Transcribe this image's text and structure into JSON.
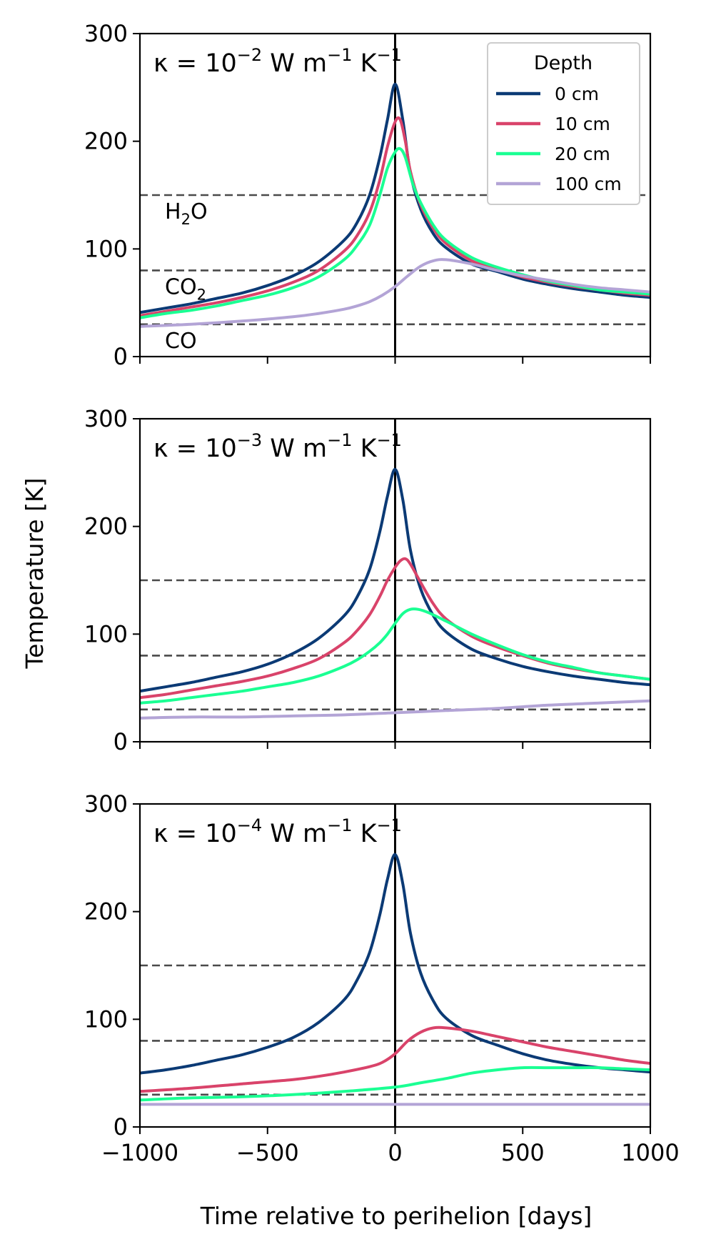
{
  "figure": {
    "xlabel": "Time relative to perihelion [days]",
    "ylabel": "Temperature [K]"
  },
  "legend": {
    "title": "Depth",
    "entries": [
      "0 cm",
      "10 cm",
      "20 cm",
      "100 cm"
    ],
    "placement": "top-right of first panel"
  },
  "ice_lines": [
    {
      "species": "H2O",
      "label_main": "H",
      "label_sub": "2",
      "label_tail": "O",
      "temperature": 150
    },
    {
      "species": "CO2",
      "label_main": "CO",
      "label_sub": "2",
      "label_tail": "",
      "temperature": 80
    },
    {
      "species": "CO",
      "label_main": "CO",
      "label_sub": "",
      "label_tail": "",
      "temperature": 30
    }
  ],
  "colors": {
    "0 cm": "#0b3a75",
    "10 cm": "#d9436a",
    "20 cm": "#1aff93",
    "100 cm": "#b3a4d6",
    "ice_line": "#4a4a4a"
  },
  "chart_data": [
    {
      "type": "line",
      "kappa_label": {
        "base": "κ = 10",
        "exp": "−2",
        "units": " W m",
        "u_exp1": "−1",
        "units2": " K",
        "u_exp2": "−1"
      },
      "xlim": [
        -1000,
        1000
      ],
      "ylim": [
        0,
        300
      ],
      "x_ticks": [
        -1000,
        -500,
        0,
        500,
        1000
      ],
      "y_ticks": [
        0,
        100,
        200,
        300
      ],
      "show_x_tick_labels": false,
      "series": [
        {
          "name": "0 cm",
          "x": [
            -1000,
            -900,
            -800,
            -700,
            -600,
            -500,
            -400,
            -300,
            -200,
            -150,
            -100,
            -60,
            -30,
            0,
            30,
            60,
            100,
            150,
            200,
            300,
            400,
            500,
            600,
            700,
            800,
            900,
            1000
          ],
          "y": [
            41,
            45,
            49,
            54,
            59,
            66,
            75,
            88,
            108,
            124,
            150,
            185,
            220,
            253,
            220,
            170,
            137,
            114,
            101,
            86,
            79,
            72,
            67,
            63,
            60,
            57,
            55
          ]
        },
        {
          "name": "10 cm",
          "x": [
            -1000,
            -900,
            -800,
            -700,
            -600,
            -500,
            -400,
            -300,
            -200,
            -150,
            -100,
            -60,
            -30,
            0,
            20,
            40,
            60,
            100,
            150,
            200,
            300,
            400,
            500,
            600,
            700,
            800,
            900,
            1000
          ],
          "y": [
            38,
            42,
            46,
            50,
            55,
            61,
            69,
            80,
            98,
            112,
            134,
            164,
            195,
            218,
            220,
            200,
            172,
            141,
            119,
            105,
            89,
            81,
            74,
            69,
            65,
            62,
            59,
            57
          ]
        },
        {
          "name": "20 cm",
          "x": [
            -1000,
            -900,
            -800,
            -700,
            -600,
            -500,
            -400,
            -300,
            -200,
            -150,
            -100,
            -60,
            -30,
            0,
            20,
            40,
            70,
            100,
            150,
            200,
            300,
            400,
            500,
            600,
            700,
            800,
            900,
            1000
          ],
          "y": [
            36,
            40,
            43,
            47,
            52,
            57,
            64,
            74,
            90,
            103,
            122,
            150,
            175,
            190,
            193,
            185,
            160,
            143,
            122,
            108,
            92,
            83,
            76,
            70,
            66,
            62,
            60,
            58
          ]
        },
        {
          "name": "100 cm",
          "x": [
            -1000,
            -800,
            -600,
            -400,
            -300,
            -200,
            -150,
            -100,
            -50,
            0,
            50,
            100,
            150,
            200,
            300,
            400,
            500,
            600,
            700,
            800,
            900,
            1000
          ],
          "y": [
            28,
            30,
            33,
            37,
            40,
            44,
            47,
            51,
            57,
            65,
            75,
            84,
            89,
            90,
            86,
            80,
            75,
            71,
            67,
            64,
            62,
            60
          ]
        }
      ]
    },
    {
      "type": "line",
      "kappa_label": {
        "base": "κ = 10",
        "exp": "−3",
        "units": " W m",
        "u_exp1": "−1",
        "units2": " K",
        "u_exp2": "−1"
      },
      "xlim": [
        -1000,
        1000
      ],
      "ylim": [
        0,
        300
      ],
      "x_ticks": [
        -1000,
        -500,
        0,
        500,
        1000
      ],
      "y_ticks": [
        0,
        100,
        200,
        300
      ],
      "show_x_tick_labels": false,
      "series": [
        {
          "name": "0 cm",
          "x": [
            -1000,
            -900,
            -800,
            -700,
            -600,
            -500,
            -400,
            -300,
            -200,
            -150,
            -100,
            -60,
            -30,
            0,
            30,
            60,
            100,
            150,
            200,
            300,
            400,
            500,
            600,
            700,
            800,
            900,
            1000
          ],
          "y": [
            47,
            51,
            55,
            60,
            65,
            72,
            82,
            96,
            117,
            134,
            160,
            195,
            228,
            253,
            225,
            178,
            142,
            117,
            102,
            86,
            77,
            70,
            65,
            61,
            58,
            55,
            53
          ]
        },
        {
          "name": "10 cm",
          "x": [
            -1000,
            -900,
            -800,
            -700,
            -600,
            -500,
            -400,
            -300,
            -200,
            -150,
            -100,
            -60,
            -30,
            0,
            20,
            40,
            60,
            100,
            150,
            200,
            300,
            400,
            500,
            600,
            700,
            800,
            900,
            1000
          ],
          "y": [
            41,
            44,
            48,
            52,
            56,
            61,
            68,
            77,
            92,
            103,
            118,
            135,
            150,
            162,
            168,
            170,
            165,
            148,
            128,
            114,
            98,
            88,
            80,
            73,
            68,
            64,
            61,
            58
          ]
        },
        {
          "name": "20 cm",
          "x": [
            -1000,
            -900,
            -800,
            -700,
            -600,
            -500,
            -400,
            -300,
            -200,
            -150,
            -100,
            -60,
            -30,
            0,
            30,
            60,
            90,
            130,
            200,
            300,
            400,
            500,
            600,
            700,
            800,
            900,
            1000
          ],
          "y": [
            36,
            38,
            41,
            44,
            47,
            51,
            55,
            61,
            70,
            76,
            84,
            92,
            100,
            110,
            119,
            123,
            123,
            120,
            112,
            100,
            90,
            81,
            74,
            69,
            64,
            61,
            58
          ]
        },
        {
          "name": "100 cm",
          "x": [
            -1000,
            -800,
            -600,
            -400,
            -200,
            0,
            200,
            400,
            600,
            800,
            1000
          ],
          "y": [
            22,
            23,
            23,
            24,
            25,
            27,
            29,
            31,
            34,
            36,
            38
          ]
        }
      ]
    },
    {
      "type": "line",
      "kappa_label": {
        "base": "κ = 10",
        "exp": "−4",
        "units": " W m",
        "u_exp1": "−1",
        "units2": " K",
        "u_exp2": "−1"
      },
      "xlim": [
        -1000,
        1000
      ],
      "ylim": [
        0,
        300
      ],
      "x_ticks": [
        -1000,
        -500,
        0,
        500,
        1000
      ],
      "y_ticks": [
        0,
        100,
        200,
        300
      ],
      "x_tick_labels": [
        "−1000",
        "−500",
        "0",
        "500",
        "1000"
      ],
      "show_x_tick_labels": true,
      "series": [
        {
          "name": "0 cm",
          "x": [
            -1000,
            -900,
            -800,
            -700,
            -600,
            -500,
            -400,
            -300,
            -200,
            -150,
            -100,
            -60,
            -30,
            0,
            30,
            60,
            100,
            150,
            200,
            300,
            400,
            500,
            600,
            700,
            800,
            900,
            1000
          ],
          "y": [
            50,
            53,
            57,
            62,
            67,
            74,
            83,
            97,
            118,
            136,
            162,
            197,
            230,
            253,
            226,
            180,
            143,
            117,
            101,
            85,
            76,
            68,
            62,
            58,
            55,
            53,
            51
          ]
        },
        {
          "name": "10 cm",
          "x": [
            -1000,
            -800,
            -600,
            -400,
            -300,
            -200,
            -100,
            -50,
            0,
            50,
            100,
            150,
            200,
            300,
            400,
            500,
            600,
            700,
            800,
            900,
            1000
          ],
          "y": [
            33,
            36,
            40,
            44,
            47,
            51,
            56,
            60,
            68,
            80,
            88,
            92,
            92,
            89,
            84,
            79,
            74,
            70,
            66,
            62,
            59
          ]
        },
        {
          "name": "20 cm",
          "x": [
            -1000,
            -800,
            -600,
            -400,
            -200,
            0,
            100,
            200,
            300,
            400,
            500,
            600,
            700,
            800,
            900,
            1000
          ],
          "y": [
            25,
            27,
            28,
            30,
            33,
            37,
            41,
            45,
            50,
            53,
            55,
            55,
            55,
            55,
            54,
            53
          ]
        },
        {
          "name": "100 cm",
          "x": [
            -1000,
            -500,
            0,
            500,
            1000
          ],
          "y": [
            21,
            21,
            21,
            21,
            21
          ]
        }
      ]
    }
  ]
}
